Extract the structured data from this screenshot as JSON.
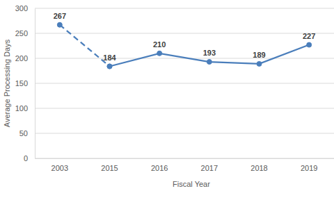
{
  "chart_data": {
    "type": "line",
    "x_label": "Fiscal Year",
    "y_label": "Average Processing Days",
    "categories": [
      "2003",
      "2015",
      "2016",
      "2017",
      "2018",
      "2019"
    ],
    "series": [
      {
        "color": "#4a7ebb",
        "line_style": "dashed",
        "marker": "circle",
        "values": [
          267,
          184,
          null,
          null,
          null,
          null
        ]
      },
      {
        "color": "#4a7ebb",
        "line_style": "solid",
        "marker": "circle",
        "values": [
          null,
          184,
          210,
          193,
          189,
          227
        ]
      }
    ],
    "ylim": [
      0,
      300
    ],
    "yticks": [
      0,
      50,
      100,
      150,
      200,
      250,
      300
    ],
    "grid": true,
    "data_labels": true
  }
}
